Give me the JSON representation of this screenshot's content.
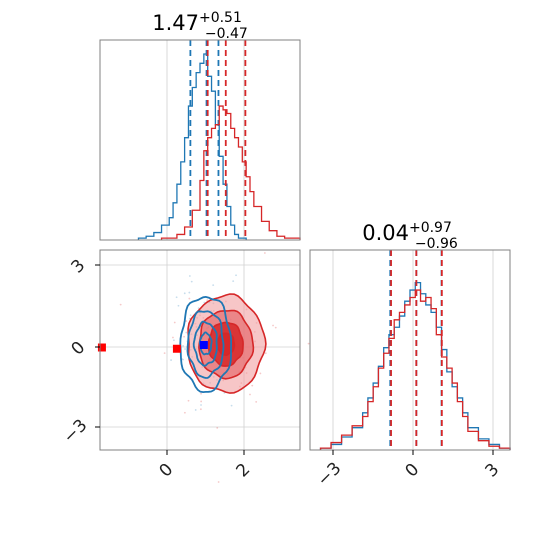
{
  "colors": {
    "blue": "#1f77b4",
    "red": "#d62728",
    "red_fill_light": "#f2a0a2",
    "red_fill_mid": "#e56b6e",
    "red_fill_dark": "#d62728",
    "marker_blue": "#0000ff",
    "marker_red": "#ff0000"
  },
  "chart_data": [
    {
      "type": "histogram",
      "panel": "top-left",
      "title_main": "1.47",
      "title_sup": "+0.51",
      "title_sub": "−0.47",
      "xlim": [
        -1.8,
        3.4
      ],
      "grid": true,
      "series": [
        {
          "name": "",
          "color": "#1f77b4",
          "bin_edges": [
            -0.8,
            -0.6,
            -0.4,
            -0.2,
            0.0,
            0.1,
            0.2,
            0.3,
            0.4,
            0.5,
            0.6,
            0.7,
            0.8,
            0.9,
            1.0,
            1.1,
            1.2,
            1.3,
            1.4,
            1.5,
            1.6,
            1.7,
            1.8,
            2.0
          ],
          "counts": [
            0.01,
            0.02,
            0.04,
            0.08,
            0.12,
            0.2,
            0.3,
            0.42,
            0.55,
            0.72,
            0.82,
            0.9,
            0.95,
            1.0,
            0.88,
            0.8,
            0.62,
            0.45,
            0.3,
            0.18,
            0.08,
            0.03,
            0.01
          ],
          "quantiles": [
            0.55,
            0.97,
            1.28
          ]
        },
        {
          "name": "",
          "color": "#d62728",
          "bin_edges": [
            -0.2,
            0.2,
            0.4,
            0.6,
            0.8,
            0.9,
            1.0,
            1.1,
            1.2,
            1.3,
            1.4,
            1.5,
            1.6,
            1.7,
            1.8,
            1.9,
            2.0,
            2.1,
            2.2,
            2.4,
            2.6,
            2.8,
            3.0,
            3.4
          ],
          "counts": [
            0.01,
            0.03,
            0.07,
            0.16,
            0.32,
            0.48,
            0.55,
            0.6,
            0.62,
            0.72,
            0.7,
            0.68,
            0.6,
            0.55,
            0.5,
            0.42,
            0.34,
            0.26,
            0.18,
            0.1,
            0.05,
            0.02,
            0.01
          ],
          "quantiles": [
            1.0,
            1.47,
            1.98
          ]
        }
      ]
    },
    {
      "type": "contour",
      "panel": "bottom-left",
      "xlim": [
        -1.8,
        3.4
      ],
      "ylim": [
        -4.2,
        3.8
      ],
      "xticks": [
        0,
        2
      ],
      "xtick_labels": [
        "0",
        "2"
      ],
      "yticks": [
        -3,
        0,
        3
      ],
      "ytick_labels": [
        "−3",
        "0",
        "3"
      ],
      "grid": true,
      "series": [
        {
          "name": "",
          "color": "#1f77b4",
          "center": [
            0.95,
            0.05
          ],
          "sigma": [
            0.33,
            0.95
          ]
        },
        {
          "name": "",
          "color": "#d62728",
          "center": [
            1.47,
            0.04
          ],
          "sigma": [
            0.5,
            0.97
          ]
        }
      ],
      "markers": [
        {
          "color": "#0000ff",
          "x": 0.9,
          "y": 0.0
        },
        {
          "color": "#ff0000",
          "x": 0.2,
          "y": -0.15
        },
        {
          "color": "#ff0000",
          "x": -1.75,
          "y": -0.1
        }
      ]
    },
    {
      "type": "histogram",
      "panel": "bottom-right",
      "title_main": "0.04",
      "title_sup": "+0.97",
      "title_sub": "−0.96",
      "xlim": [
        -4.0,
        3.6
      ],
      "xticks": [
        -3,
        0,
        3
      ],
      "xtick_labels": [
        "−3",
        "0",
        "3"
      ],
      "grid": true,
      "series": [
        {
          "name": "",
          "color": "#1f77b4",
          "bin_edges": [
            -3.6,
            -3.2,
            -2.8,
            -2.4,
            -2.0,
            -1.8,
            -1.6,
            -1.4,
            -1.2,
            -1.0,
            -0.8,
            -0.6,
            -0.4,
            -0.2,
            0.0,
            0.2,
            0.4,
            0.6,
            0.8,
            1.0,
            1.2,
            1.4,
            1.6,
            1.8,
            2.0,
            2.4,
            2.8,
            3.2,
            3.6
          ],
          "counts": [
            0.01,
            0.03,
            0.07,
            0.12,
            0.2,
            0.28,
            0.36,
            0.45,
            0.55,
            0.62,
            0.66,
            0.72,
            0.8,
            0.86,
            0.9,
            0.84,
            0.78,
            0.74,
            0.66,
            0.54,
            0.42,
            0.34,
            0.28,
            0.2,
            0.12,
            0.06,
            0.03,
            0.01
          ],
          "quantiles": [
            -0.95,
            0.04,
            1.0
          ]
        },
        {
          "name": "",
          "color": "#d62728",
          "bin_edges": [
            -3.6,
            -3.2,
            -2.8,
            -2.4,
            -2.0,
            -1.8,
            -1.6,
            -1.4,
            -1.2,
            -1.0,
            -0.8,
            -0.6,
            -0.4,
            -0.2,
            0.0,
            0.2,
            0.4,
            0.6,
            0.8,
            1.0,
            1.2,
            1.4,
            1.6,
            1.8,
            2.0,
            2.4,
            2.8,
            3.2,
            3.6
          ],
          "counts": [
            0.01,
            0.04,
            0.08,
            0.13,
            0.18,
            0.26,
            0.34,
            0.44,
            0.52,
            0.6,
            0.7,
            0.74,
            0.78,
            0.82,
            0.86,
            0.8,
            0.82,
            0.76,
            0.62,
            0.5,
            0.44,
            0.36,
            0.26,
            0.18,
            0.1,
            0.05,
            0.02,
            0.01
          ],
          "quantiles": [
            -0.92,
            0.04,
            1.01
          ]
        }
      ]
    }
  ]
}
